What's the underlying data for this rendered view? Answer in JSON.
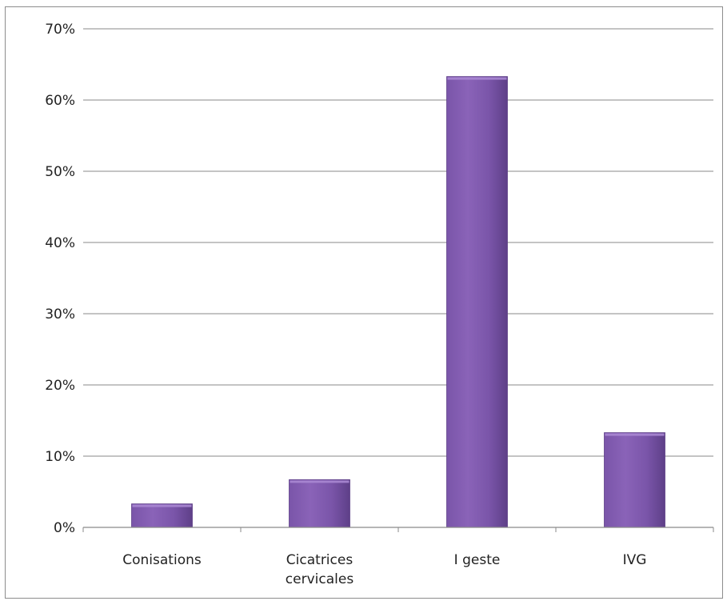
{
  "chart_data": {
    "type": "bar",
    "categories": [
      "Conisations",
      "Cicatrices cervicales",
      "I geste",
      "IVG"
    ],
    "category_label_lines": [
      [
        "Conisations"
      ],
      [
        "Cicatrices",
        "cervicales"
      ],
      [
        "I geste"
      ],
      [
        "IVG"
      ]
    ],
    "values": [
      3.3,
      6.7,
      63.3,
      13.3
    ],
    "y_ticks": [
      "0%",
      "10%",
      "20%",
      "30%",
      "40%",
      "50%",
      "60%",
      "70%"
    ],
    "ylim": [
      0,
      70
    ],
    "grid": true,
    "legend": "none",
    "title": "",
    "xlabel": "",
    "ylabel": "",
    "colors": {
      "bar_light": "#8a63b8",
      "bar_mid": "#7a55a9",
      "bar_dark": "#5e3f88",
      "bar_top": "#a887d1"
    }
  }
}
